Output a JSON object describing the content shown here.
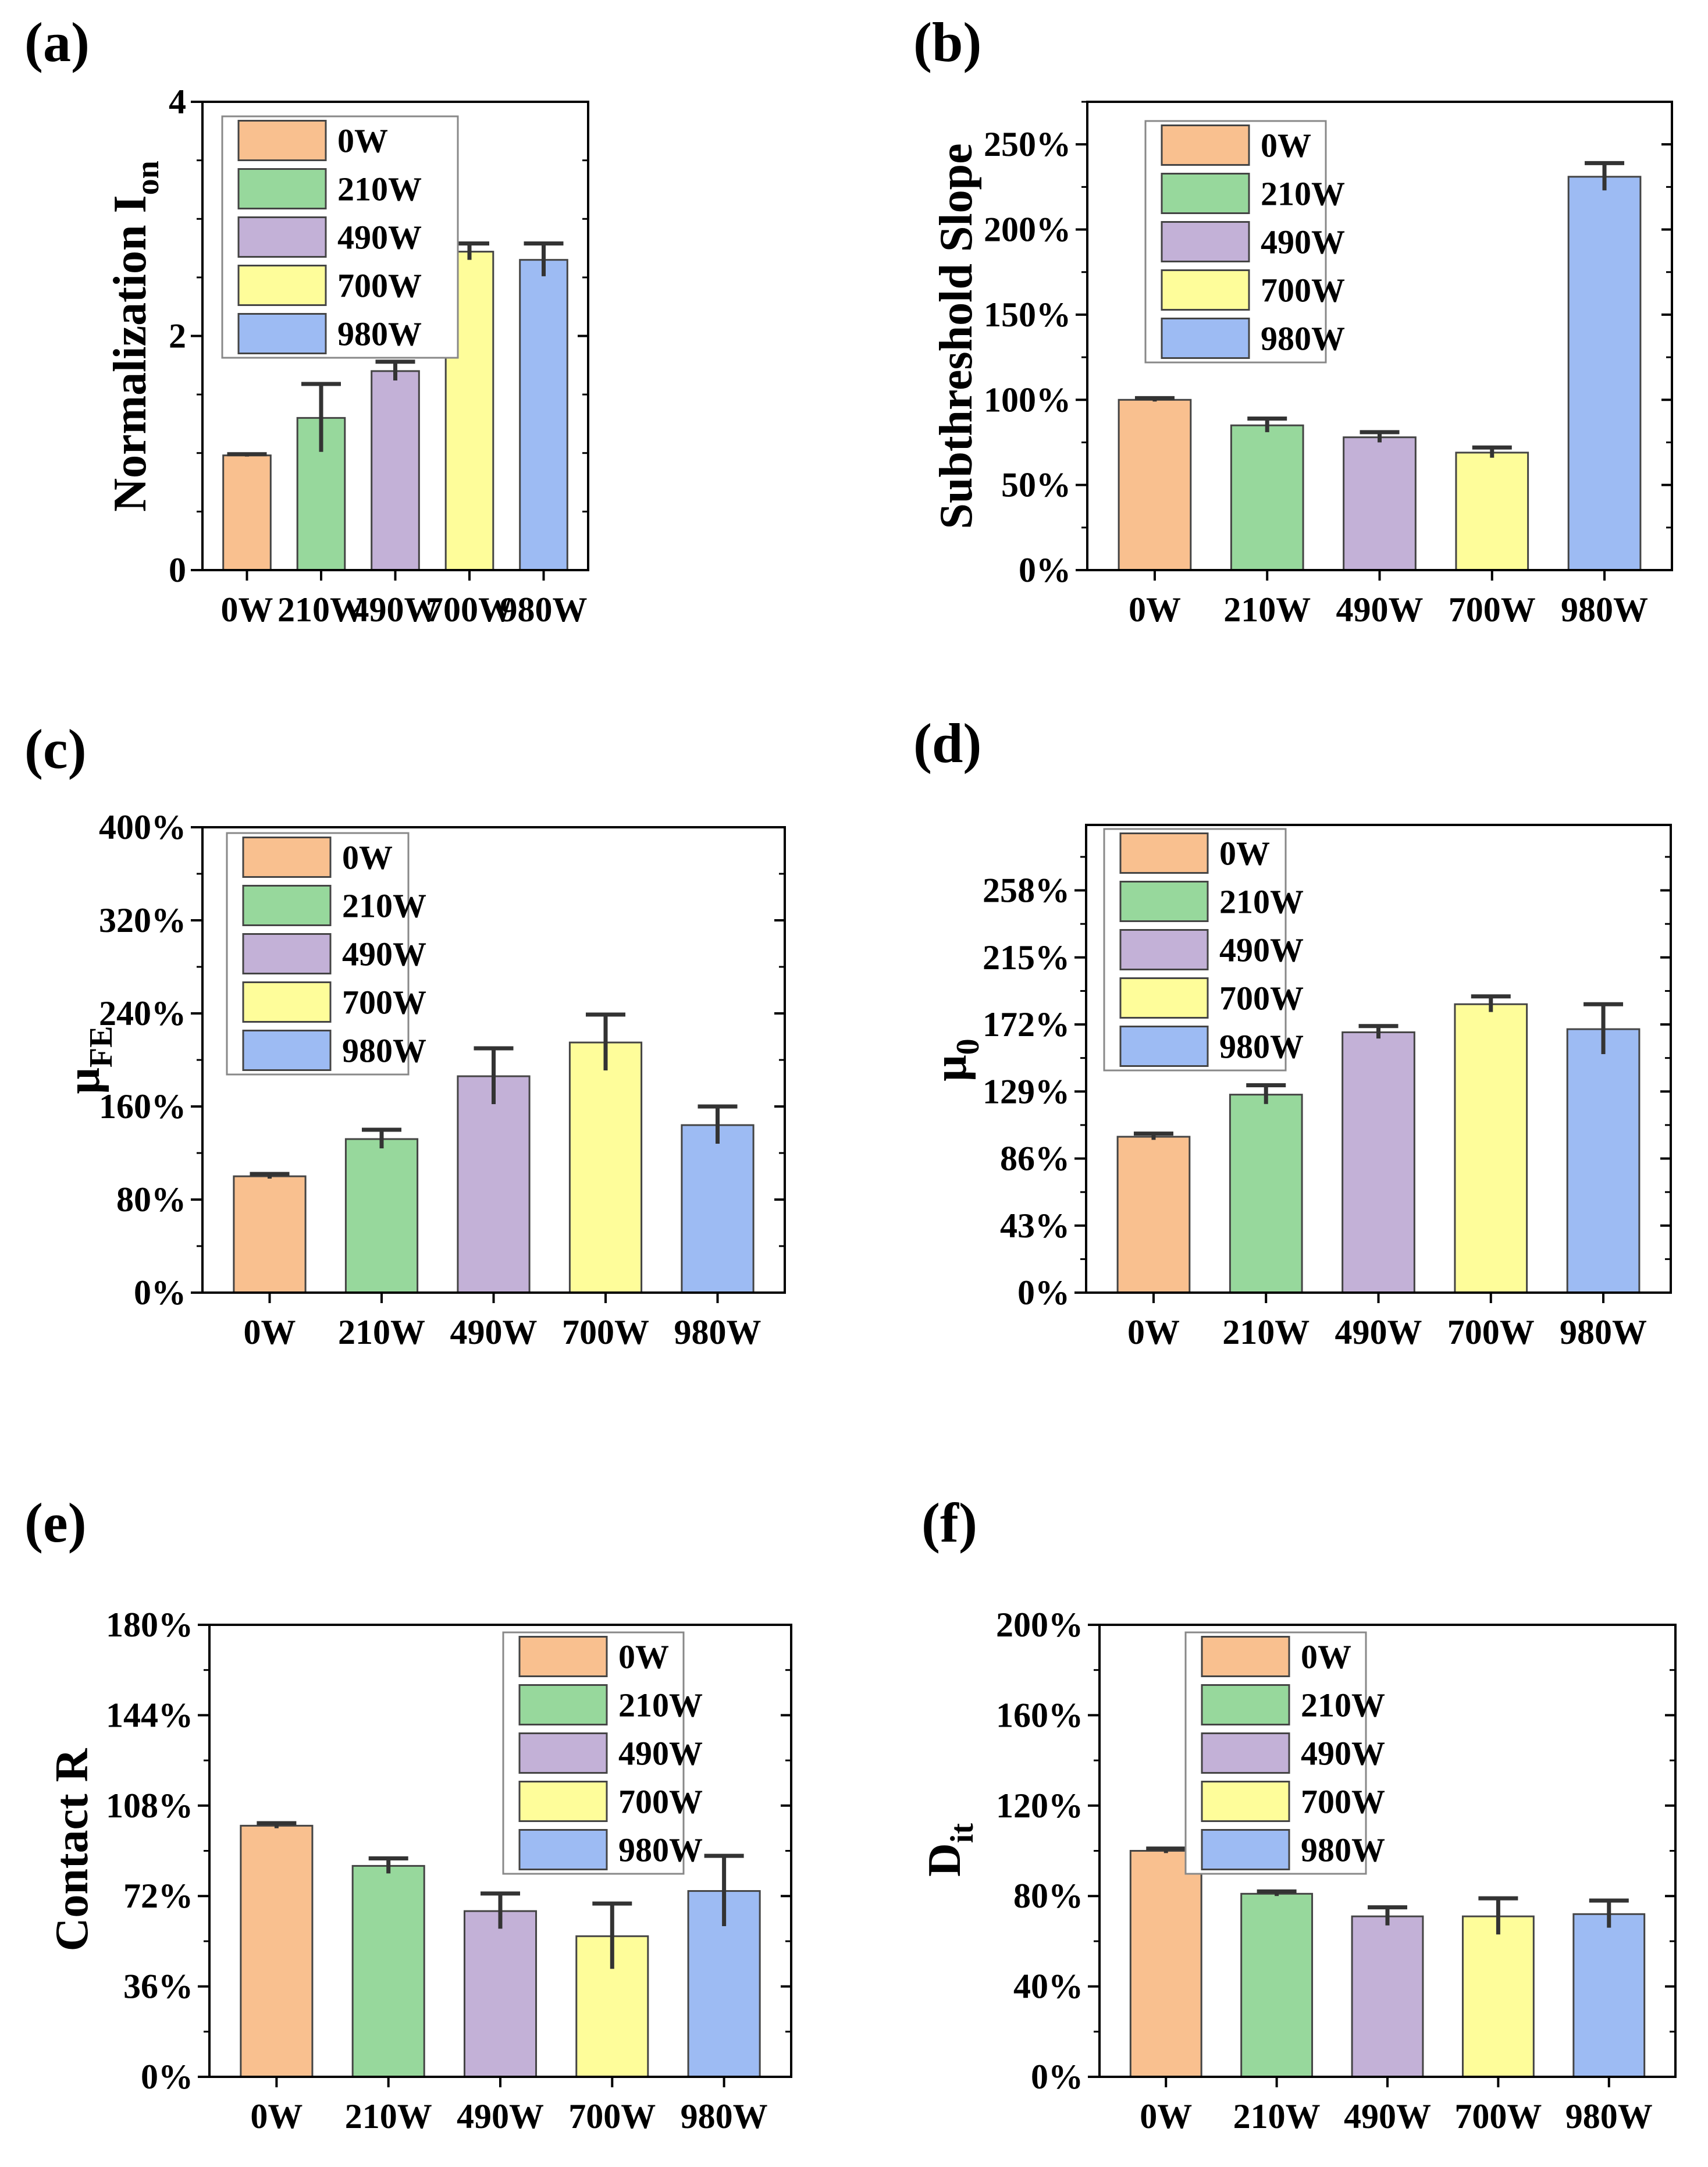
{
  "colors": {
    "0W": "#F9C08F",
    "210W": "#97D89C",
    "490W": "#C3B1D7",
    "700W": "#FEFD9A",
    "980W": "#9DBBF3"
  },
  "chart_data": [
    {
      "panel": "(a)",
      "type": "bar",
      "categories": [
        "0W",
        "210W",
        "490W",
        "700W",
        "980W"
      ],
      "values": [
        0.98,
        1.3,
        1.7,
        2.72,
        2.65
      ],
      "errors": [
        0.01,
        0.29,
        0.08,
        0.07,
        0.14
      ],
      "ylabel": "Normalization I",
      "ylabel_sub": "on",
      "ylim": [
        0,
        4
      ],
      "yticks": [
        0,
        2,
        4
      ],
      "ytick_labels": [
        "0",
        "2",
        "4"
      ],
      "minor_step": 0.5,
      "legend": [
        "0W",
        "210W",
        "490W",
        "700W",
        "980W"
      ],
      "legend_position": "top-left"
    },
    {
      "panel": "(b)",
      "type": "bar",
      "categories": [
        "0W",
        "210W",
        "490W",
        "700W",
        "980W"
      ],
      "values": [
        100,
        85,
        78,
        69,
        231
      ],
      "errors": [
        1,
        4,
        3,
        3,
        8
      ],
      "ylabel": "Subthreshold Slope",
      "ylabel_sub": "",
      "ylim": [
        0,
        275
      ],
      "yticks": [
        0,
        50,
        100,
        150,
        200,
        250
      ],
      "ytick_labels": [
        "0%",
        "50%",
        "100%",
        "150%",
        "200%",
        "250%"
      ],
      "minor_step": 25,
      "legend": [
        "0W",
        "210W",
        "490W",
        "700W",
        "980W"
      ],
      "legend_position": "top-left"
    },
    {
      "panel": "(c)",
      "type": "bar",
      "categories": [
        "0W",
        "210W",
        "490W",
        "700W",
        "980W"
      ],
      "values": [
        100,
        132,
        186,
        215,
        144
      ],
      "errors": [
        2,
        8,
        24,
        24,
        16
      ],
      "ylabel": "μ",
      "ylabel_sub": "FE",
      "ylim": [
        0,
        400
      ],
      "yticks": [
        0,
        80,
        160,
        240,
        320,
        400
      ],
      "ytick_labels": [
        "0%",
        "80%",
        "160%",
        "240%",
        "320%",
        "400%"
      ],
      "minor_step": 40,
      "legend": [
        "0W",
        "210W",
        "490W",
        "700W",
        "980W"
      ],
      "legend_position": "top-left"
    },
    {
      "panel": "(d)",
      "type": "bar",
      "categories": [
        "0W",
        "210W",
        "490W",
        "700W",
        "980W"
      ],
      "values": [
        100,
        127,
        167,
        185,
        169
      ],
      "errors": [
        2,
        6,
        4,
        5,
        16
      ],
      "ylabel": "μ",
      "ylabel_sub": "0",
      "ylim": [
        0,
        300
      ],
      "yticks": [
        0,
        43,
        86,
        129,
        172,
        215,
        258
      ],
      "ytick_labels": [
        "0%",
        "43%",
        "86%",
        "129%",
        "172%",
        "215%",
        "258%"
      ],
      "minor_step": 21.5,
      "legend": [
        "0W",
        "210W",
        "490W",
        "700W",
        "980W"
      ],
      "legend_position": "top-left"
    },
    {
      "panel": "(e)",
      "type": "bar",
      "categories": [
        "0W",
        "210W",
        "490W",
        "700W",
        "980W"
      ],
      "values": [
        100,
        84,
        66,
        56,
        74
      ],
      "errors": [
        1,
        3,
        7,
        13,
        14
      ],
      "ylabel": "Contact R",
      "ylabel_sub": "",
      "ylim": [
        0,
        180
      ],
      "yticks": [
        0,
        36,
        72,
        108,
        144,
        180
      ],
      "ytick_labels": [
        "0%",
        "36%",
        "72%",
        "108%",
        "144%",
        "180%"
      ],
      "minor_step": 18,
      "legend": [
        "0W",
        "210W",
        "490W",
        "700W",
        "980W"
      ],
      "legend_position": "top-right"
    },
    {
      "panel": "(f)",
      "type": "bar",
      "categories": [
        "0W",
        "210W",
        "490W",
        "700W",
        "980W"
      ],
      "values": [
        100,
        81,
        71,
        71,
        72
      ],
      "errors": [
        1,
        1,
        4,
        8,
        6
      ],
      "ylabel": "D",
      "ylabel_sub": "it",
      "ylim": [
        0,
        200
      ],
      "yticks": [
        0,
        40,
        80,
        120,
        160,
        200
      ],
      "ytick_labels": [
        "0%",
        "40%",
        "80%",
        "120%",
        "160%",
        "200%"
      ],
      "minor_step": 20,
      "legend": [
        "0W",
        "210W",
        "490W",
        "700W",
        "980W"
      ],
      "legend_position": "top-center"
    }
  ]
}
